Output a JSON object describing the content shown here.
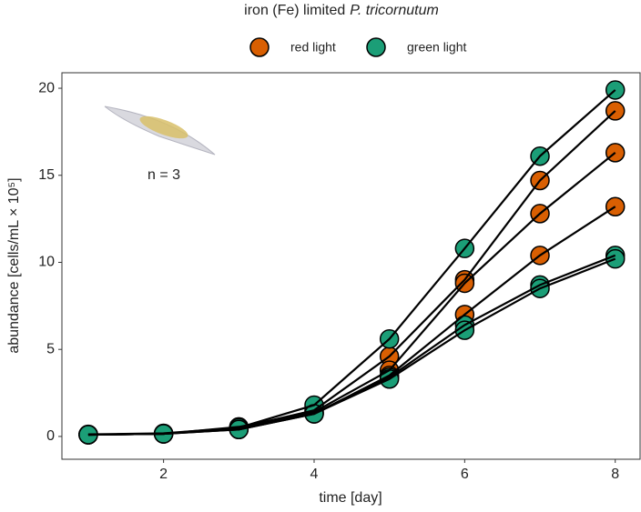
{
  "chart_data": {
    "type": "line",
    "title": [
      "iron (Fe) limited",
      "P. tricornutum"
    ],
    "xlabel": "time [day]",
    "ylabel": "abundance [cells/mL × 10⁵]",
    "annotation": "n = 3",
    "x": [
      1,
      2,
      3,
      4,
      5,
      6,
      7,
      8
    ],
    "xlim": [
      0.65,
      8.33
    ],
    "xticks": [
      2,
      4,
      6,
      8
    ],
    "ylim": [
      -1.31,
      20.89
    ],
    "yticks": [
      0,
      5,
      10,
      15,
      20
    ],
    "series": [
      {
        "name": "red light",
        "color": "#d95f02",
        "values": [
          0.1,
          0.15,
          0.5,
          1.5,
          4.6,
          9.0,
          14.7,
          18.7
        ]
      },
      {
        "name": "red light",
        "color": "#d95f02",
        "values": [
          0.1,
          0.15,
          0.55,
          1.4,
          3.8,
          8.8,
          12.8,
          16.3
        ]
      },
      {
        "name": "red light",
        "color": "#d95f02",
        "values": [
          0.1,
          0.15,
          0.45,
          1.3,
          3.5,
          7.0,
          10.4,
          13.2
        ]
      },
      {
        "name": "green light",
        "color": "#1b9e77",
        "values": [
          0.12,
          0.18,
          0.5,
          1.8,
          5.6,
          10.8,
          16.1,
          19.9
        ]
      },
      {
        "name": "green light",
        "color": "#1b9e77",
        "values": [
          0.1,
          0.15,
          0.4,
          1.3,
          3.4,
          6.4,
          8.7,
          10.4
        ]
      },
      {
        "name": "green light",
        "color": "#1b9e77",
        "values": [
          0.1,
          0.15,
          0.4,
          1.3,
          3.3,
          6.1,
          8.5,
          10.2
        ]
      }
    ],
    "legend": [
      0,
      3
    ]
  }
}
